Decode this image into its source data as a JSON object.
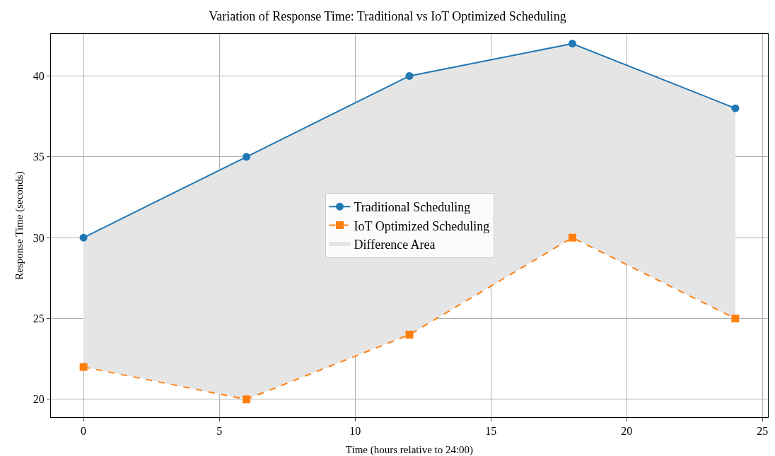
{
  "chart_data": {
    "type": "line",
    "title": "Variation of Response Time: Traditional vs IoT Optimized Scheduling",
    "xlabel": "Time (hours relative to 24:00)",
    "ylabel": "Response Time (seconds)",
    "x": [
      0,
      6,
      12,
      18,
      24
    ],
    "series": [
      {
        "name": "Traditional Scheduling",
        "color": "#1f77b4",
        "values": [
          30,
          35,
          40,
          42,
          38
        ],
        "marker": "circle",
        "line_style": "solid"
      },
      {
        "name": "IoT Optimized Scheduling",
        "color": "#ff7f0e",
        "values": [
          22,
          20,
          24,
          30,
          25
        ],
        "marker": "square",
        "line_style": "dashed"
      },
      {
        "name": "Difference Area",
        "type": "area",
        "color": "#e5e5e5",
        "values": [
          null,
          null,
          null,
          null,
          null
        ],
        "lower": [
          22,
          20,
          24,
          30,
          25
        ],
        "upper": [
          30,
          35,
          40,
          42,
          38
        ]
      }
    ],
    "xlim": [
      -1.2,
      25.2
    ],
    "xticks": [
      0,
      5,
      10,
      15,
      20,
      25
    ],
    "ylim": [
      18.9,
      42.6
    ],
    "yticks": [
      20,
      25,
      30,
      35,
      40
    ],
    "grid": true,
    "legend": "center"
  }
}
